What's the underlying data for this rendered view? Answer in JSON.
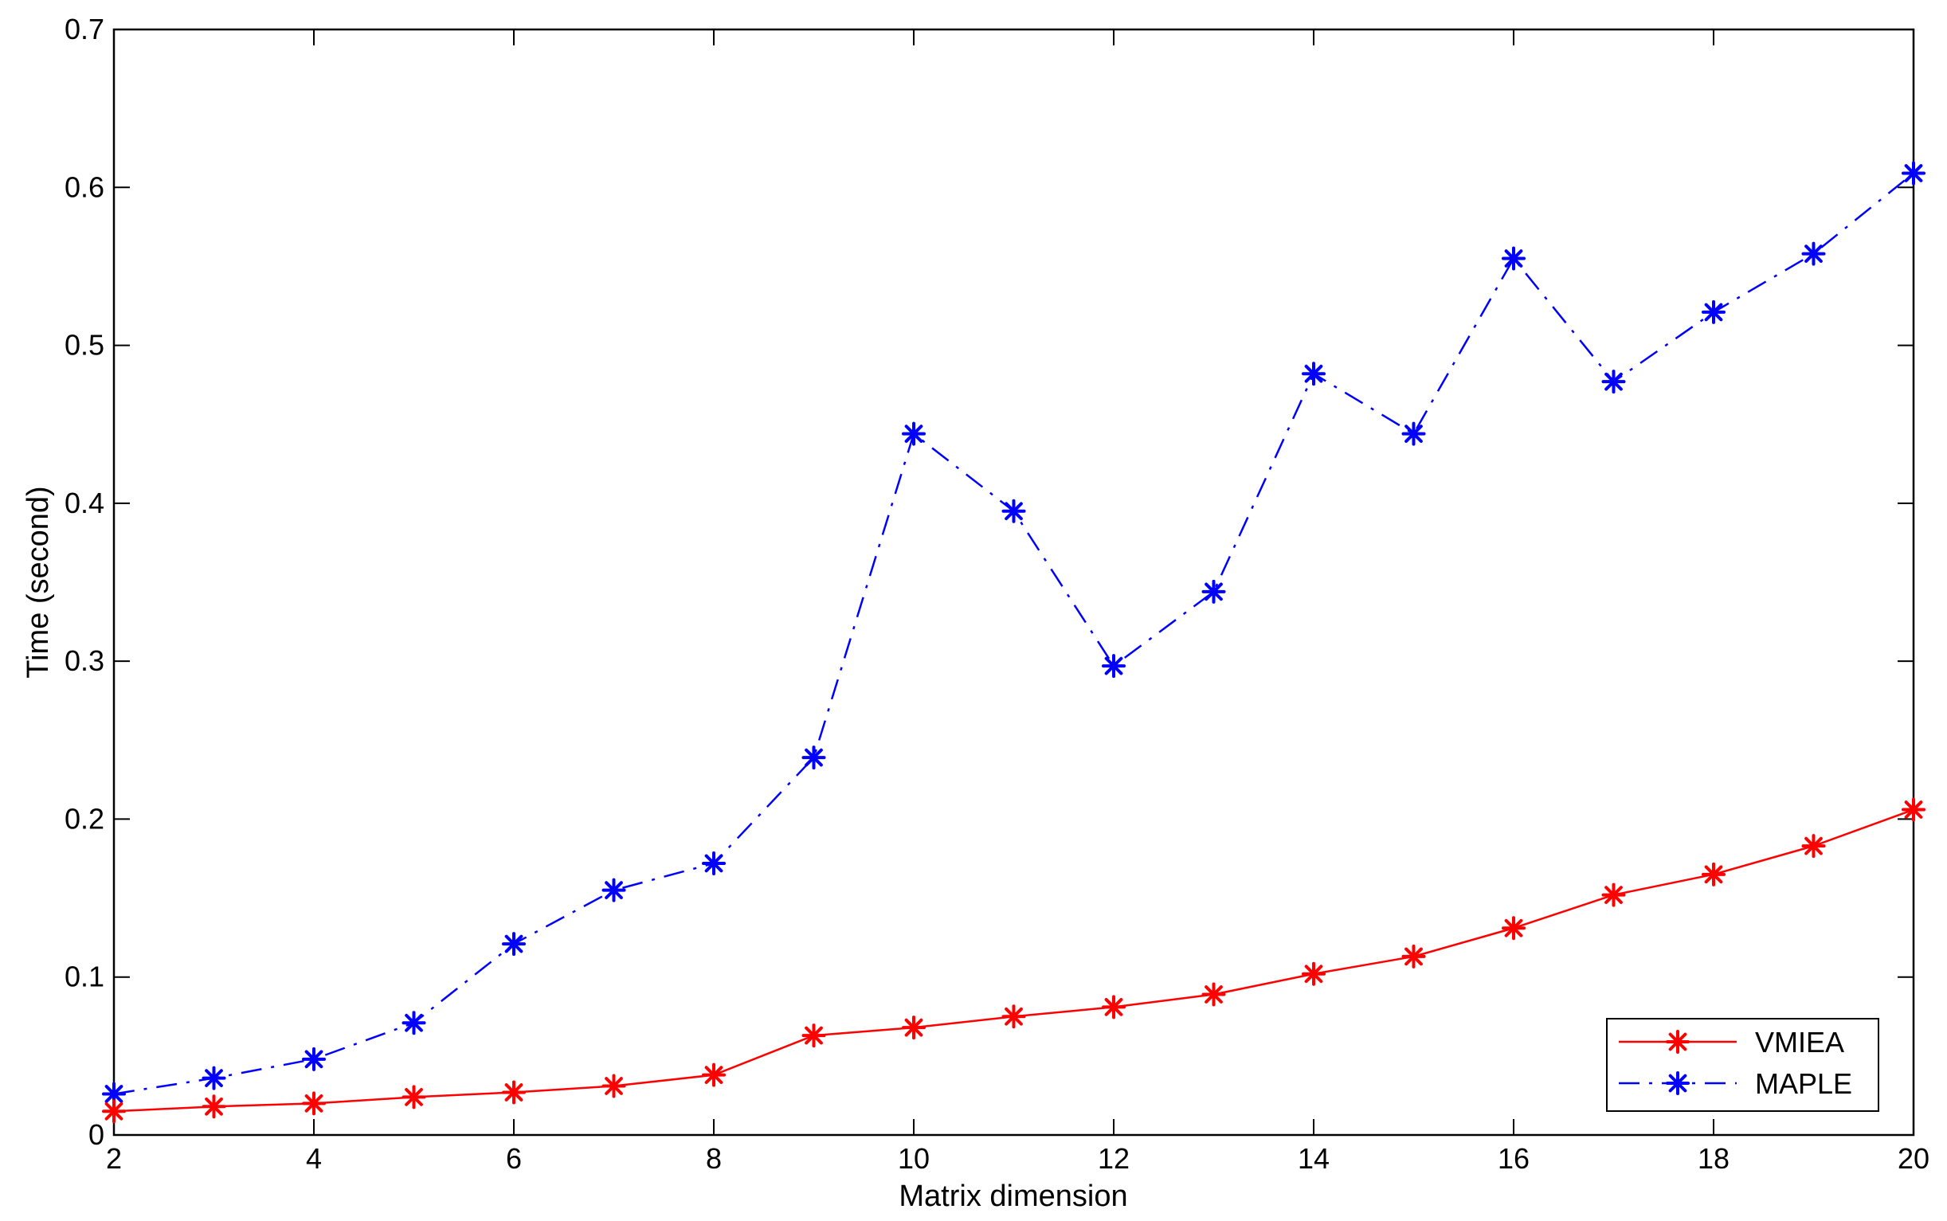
{
  "chart_data": {
    "type": "line",
    "xlabel": "Matrix dimension",
    "ylabel": "Time (second)",
    "xlim": [
      2,
      20
    ],
    "ylim": [
      0,
      0.7
    ],
    "xticks": [
      "2",
      "4",
      "6",
      "8",
      "10",
      "12",
      "14",
      "16",
      "18",
      "20"
    ],
    "yticks": [
      "0",
      "0.1",
      "0.2",
      "0.3",
      "0.4",
      "0.5",
      "0.6",
      "0.7"
    ],
    "grid": false,
    "legend_position": "bottom-right",
    "x": [
      2,
      3,
      4,
      5,
      6,
      7,
      8,
      9,
      10,
      11,
      12,
      13,
      14,
      15,
      16,
      17,
      18,
      19,
      20
    ],
    "series": [
      {
        "name": "VMIEA",
        "color": "#ff0000",
        "line_style": "solid",
        "marker": "asterisk",
        "values": [
          0.015,
          0.018,
          0.02,
          0.024,
          0.027,
          0.031,
          0.038,
          0.063,
          0.068,
          0.075,
          0.081,
          0.089,
          0.102,
          0.113,
          0.131,
          0.152,
          0.165,
          0.183,
          0.206
        ]
      },
      {
        "name": "MAPLE",
        "color": "#0000ff",
        "line_style": "dash-dot",
        "marker": "asterisk",
        "values": [
          0.026,
          0.036,
          0.048,
          0.071,
          0.121,
          0.155,
          0.172,
          0.239,
          0.444,
          0.395,
          0.297,
          0.344,
          0.482,
          0.444,
          0.555,
          0.477,
          0.521,
          0.558,
          0.609
        ]
      }
    ]
  }
}
